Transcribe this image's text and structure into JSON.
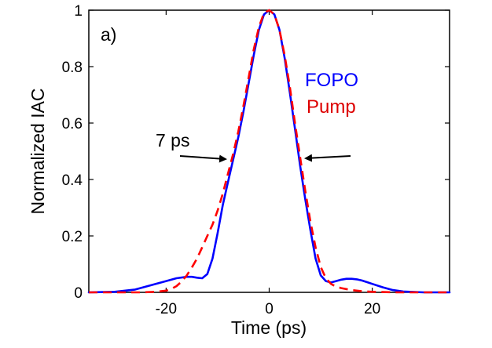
{
  "chart_data": {
    "type": "line",
    "panel_label": "a)",
    "xlabel": "Time (ps)",
    "ylabel": "Normalized IAC",
    "xlim": [
      -35,
      35
    ],
    "ylim": [
      0,
      1
    ],
    "xticks": [
      -20,
      0,
      20
    ],
    "xtick_labels": [
      "-20",
      "0",
      "20"
    ],
    "yticks": [
      0,
      0.2,
      0.4,
      0.6,
      0.8,
      1
    ],
    "ytick_labels": [
      "0",
      "0.2",
      "0.4",
      "0.6",
      "0.8",
      "1"
    ],
    "grid": false,
    "legend_position": "right",
    "series": [
      {
        "name": "FOPO",
        "color": "#0000ff",
        "style": "solid",
        "x": [
          -35,
          -30,
          -26,
          -23,
          -20,
          -18,
          -16,
          -15,
          -14,
          -13,
          -12,
          -11,
          -10,
          -9,
          -8,
          -7,
          -6,
          -5,
          -4,
          -3,
          -2,
          -1,
          0,
          1,
          2,
          3,
          4,
          5,
          6,
          7,
          8,
          9,
          10,
          11,
          12,
          13,
          14,
          15,
          16,
          17,
          18,
          19,
          20,
          22,
          24,
          26,
          30,
          35
        ],
        "y": [
          0.0,
          0.002,
          0.01,
          0.025,
          0.04,
          0.05,
          0.055,
          0.055,
          0.052,
          0.05,
          0.065,
          0.12,
          0.21,
          0.31,
          0.39,
          0.47,
          0.55,
          0.64,
          0.74,
          0.84,
          0.93,
          0.985,
          1.0,
          0.985,
          0.93,
          0.83,
          0.71,
          0.58,
          0.45,
          0.33,
          0.22,
          0.12,
          0.06,
          0.04,
          0.035,
          0.04,
          0.045,
          0.048,
          0.048,
          0.046,
          0.042,
          0.036,
          0.03,
          0.018,
          0.008,
          0.003,
          0.0,
          0.0
        ]
      },
      {
        "name": "Pump",
        "color": "#ff0000",
        "style": "dashed",
        "x": [
          -35,
          -30,
          -25,
          -22,
          -20,
          -19,
          -18,
          -17,
          -16,
          -15,
          -14,
          -13,
          -12,
          -11,
          -10,
          -9,
          -8,
          -7,
          -6,
          -5,
          -4,
          -3,
          -2,
          -1,
          0,
          1,
          2,
          3,
          4,
          5,
          6,
          7,
          8,
          9,
          10,
          11,
          12,
          13,
          14,
          16,
          18,
          20,
          22,
          25,
          30,
          35
        ],
        "y": [
          0.0,
          0.0,
          0.0,
          0.002,
          0.006,
          0.012,
          0.022,
          0.038,
          0.06,
          0.088,
          0.12,
          0.16,
          0.2,
          0.24,
          0.29,
          0.35,
          0.42,
          0.49,
          0.57,
          0.66,
          0.76,
          0.86,
          0.94,
          0.99,
          1.0,
          0.985,
          0.93,
          0.84,
          0.73,
          0.6,
          0.48,
          0.36,
          0.25,
          0.16,
          0.09,
          0.05,
          0.03,
          0.02,
          0.015,
          0.008,
          0.004,
          0.002,
          0.001,
          0.0,
          0.0,
          0.0
        ]
      }
    ],
    "annotations": {
      "width_label": "7 ps"
    }
  }
}
